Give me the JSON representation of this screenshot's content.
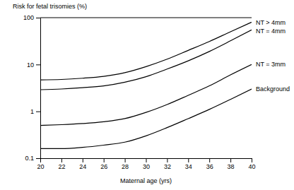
{
  "chart_data": {
    "type": "line",
    "y_label": "Risk for fetal trisomies (%)",
    "x_label": "Maternal age (yrs)",
    "x": [
      20,
      22,
      24,
      26,
      28,
      30,
      32,
      34,
      36,
      38,
      40
    ],
    "series": [
      {
        "name": "NT > 4mm",
        "color": "#000000",
        "line_style": "solid",
        "values": [
          4.7,
          4.8,
          5.1,
          5.6,
          6.7,
          9,
          13,
          20,
          31,
          50,
          80
        ]
      },
      {
        "name": "NT = 4mm",
        "color": "#000000",
        "line_style": "solid",
        "values": [
          2.9,
          3.0,
          3.2,
          3.5,
          4.2,
          5.5,
          8,
          12,
          19,
          32,
          55
        ]
      },
      {
        "name": "NT = 3mm",
        "color": "#000000",
        "line_style": "solid",
        "values": [
          0.5,
          0.52,
          0.55,
          0.6,
          0.7,
          0.95,
          1.4,
          2.2,
          3.5,
          6,
          10
        ]
      },
      {
        "name": "Background",
        "color": "#000000",
        "line_style": "solid",
        "values": [
          0.16,
          0.16,
          0.17,
          0.19,
          0.22,
          0.3,
          0.45,
          0.7,
          1.1,
          1.8,
          3.0
        ]
      }
    ],
    "xlim": [
      20,
      40
    ],
    "xticks": [
      20,
      22,
      24,
      26,
      28,
      30,
      32,
      34,
      36,
      38,
      40
    ],
    "ylim": [
      0.1,
      100
    ],
    "yticks": [
      0.1,
      1,
      10,
      100
    ],
    "log": "y",
    "grid": false
  }
}
